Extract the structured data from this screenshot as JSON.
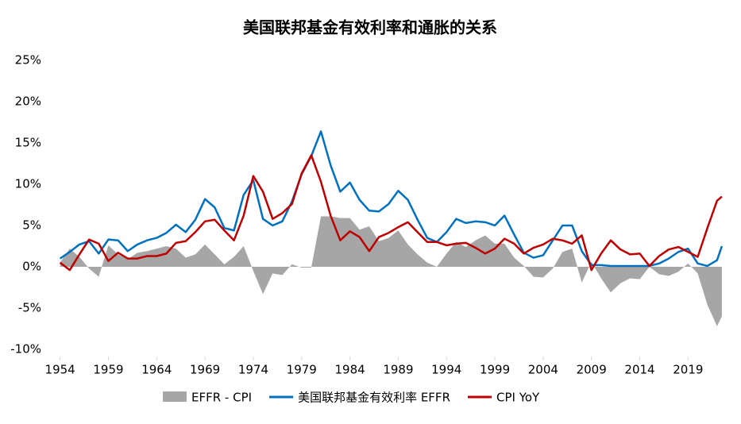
{
  "chart_data": {
    "type": "line",
    "title": "美国联邦基金有效利率和通胀的关系",
    "x": [
      1954,
      1955,
      1956,
      1957,
      1958,
      1959,
      1960,
      1961,
      1962,
      1963,
      1964,
      1965,
      1966,
      1967,
      1968,
      1969,
      1970,
      1971,
      1972,
      1973,
      1974,
      1975,
      1976,
      1977,
      1978,
      1979,
      1980,
      1981,
      1982,
      1983,
      1984,
      1985,
      1986,
      1987,
      1988,
      1989,
      1990,
      1991,
      1992,
      1993,
      1994,
      1995,
      1996,
      1997,
      1998,
      1999,
      2000,
      2001,
      2002,
      2003,
      2004,
      2005,
      2006,
      2007,
      2008,
      2009,
      2010,
      2011,
      2012,
      2013,
      2014,
      2015,
      2016,
      2017,
      2018,
      2019,
      2020,
      2021,
      2022,
      2022.5
    ],
    "series": [
      {
        "name": "EFFR - CPI",
        "kind": "area",
        "color": "#a6a6a6",
        "values": [
          0.5,
          2.2,
          1.2,
          -0.2,
          -1.2,
          2.6,
          1.5,
          0.9,
          1.7,
          1.9,
          2.2,
          2.5,
          2.2,
          1.1,
          1.5,
          2.7,
          1.5,
          0.3,
          1.2,
          2.5,
          -0.5,
          -3.3,
          -0.8,
          -1.0,
          0.3,
          -0.1,
          -0.1,
          6.1,
          6.1,
          5.9,
          5.9,
          4.5,
          4.9,
          3.1,
          3.5,
          4.4,
          2.7,
          1.5,
          0.5,
          0.0,
          1.6,
          3.0,
          2.4,
          3.2,
          3.8,
          2.8,
          2.8,
          1.1,
          0.1,
          -1.2,
          -1.3,
          -0.2,
          1.8,
          2.2,
          -1.9,
          0.6,
          -1.4,
          -3.1,
          -2.0,
          -1.4,
          -1.5,
          0.0,
          -0.9,
          -1.1,
          -0.6,
          0.4,
          -0.8,
          -4.6,
          -7.2,
          -6.0
        ]
      },
      {
        "name": "美国联邦基金有效利率 EFFR",
        "kind": "line",
        "color": "#0070c0",
        "values": [
          1.0,
          1.8,
          2.7,
          3.1,
          1.6,
          3.3,
          3.2,
          1.9,
          2.7,
          3.2,
          3.5,
          4.1,
          5.1,
          4.2,
          5.7,
          8.2,
          7.2,
          4.7,
          4.4,
          8.7,
          10.5,
          5.8,
          5.0,
          5.5,
          7.9,
          11.2,
          13.4,
          16.4,
          12.3,
          9.1,
          10.2,
          8.1,
          6.8,
          6.7,
          7.6,
          9.2,
          8.1,
          5.7,
          3.5,
          3.0,
          4.2,
          5.8,
          5.3,
          5.5,
          5.4,
          5.0,
          6.2,
          3.9,
          1.7,
          1.1,
          1.4,
          3.2,
          5.0,
          5.0,
          1.9,
          0.2,
          0.2,
          0.1,
          0.1,
          0.1,
          0.1,
          0.1,
          0.4,
          1.0,
          1.8,
          2.2,
          0.4,
          0.1,
          0.8,
          2.5
        ]
      },
      {
        "name": "CPI YoY",
        "kind": "line",
        "color": "#c00000",
        "values": [
          0.5,
          -0.4,
          1.5,
          3.3,
          2.8,
          0.7,
          1.7,
          1.0,
          1.0,
          1.3,
          1.3,
          1.6,
          2.9,
          3.1,
          4.2,
          5.5,
          5.7,
          4.4,
          3.2,
          6.2,
          11.0,
          9.1,
          5.8,
          6.5,
          7.6,
          11.3,
          13.5,
          10.3,
          6.2,
          3.2,
          4.3,
          3.6,
          1.9,
          3.6,
          4.1,
          4.8,
          5.4,
          4.2,
          3.0,
          3.0,
          2.6,
          2.8,
          2.9,
          2.3,
          1.6,
          2.2,
          3.4,
          2.8,
          1.6,
          2.3,
          2.7,
          3.4,
          3.2,
          2.8,
          3.8,
          -0.4,
          1.6,
          3.2,
          2.1,
          1.5,
          1.6,
          0.1,
          1.3,
          2.1,
          2.4,
          1.8,
          1.2,
          4.7,
          8.0,
          8.5
        ]
      }
    ],
    "xlim": [
      1953.7,
      2023
    ],
    "xticks": [
      1954,
      1959,
      1964,
      1969,
      1974,
      1979,
      1984,
      1989,
      1994,
      1999,
      2004,
      2009,
      2014,
      2019
    ],
    "ylim": [
      -10,
      25
    ],
    "yticks": [
      {
        "value": -10,
        "label": "-10%"
      },
      {
        "value": -5,
        "label": "-5%"
      },
      {
        "value": 0,
        "label": "0%"
      },
      {
        "value": 5,
        "label": "5%"
      },
      {
        "value": 10,
        "label": "10%"
      },
      {
        "value": 15,
        "label": "15%"
      },
      {
        "value": 20,
        "label": "20%"
      },
      {
        "value": 25,
        "label": "25%"
      }
    ],
    "legend": "bottom"
  }
}
